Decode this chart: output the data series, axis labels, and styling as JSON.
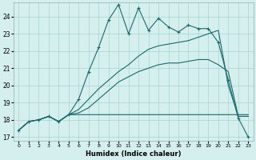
{
  "xlabel": "Humidex (Indice chaleur)",
  "bg_color": "#d5eeee",
  "line_color": "#1a6b6b",
  "xlim": [
    -0.5,
    23.5
  ],
  "ylim": [
    16.8,
    24.8
  ],
  "yticks": [
    17,
    18,
    19,
    20,
    21,
    22,
    23,
    24
  ],
  "xticks": [
    0,
    1,
    2,
    3,
    4,
    5,
    6,
    7,
    8,
    9,
    10,
    11,
    12,
    13,
    14,
    15,
    16,
    17,
    18,
    19,
    20,
    21,
    22,
    23
  ],
  "s1_x": [
    0,
    1,
    2,
    3,
    4,
    5,
    6,
    7,
    8,
    9,
    10,
    11,
    12,
    13,
    14,
    15,
    16,
    17,
    18,
    19,
    20,
    21,
    22,
    23
  ],
  "s1_y": [
    17.4,
    17.9,
    18.0,
    18.2,
    17.9,
    18.3,
    19.2,
    20.8,
    22.2,
    23.8,
    24.7,
    23.0,
    24.5,
    23.2,
    23.9,
    23.4,
    23.1,
    23.5,
    23.3,
    23.3,
    22.5,
    20.3,
    18.1,
    17.0
  ],
  "s2_x": [
    0,
    1,
    2,
    3,
    4,
    5,
    6,
    7,
    8,
    9,
    10,
    11,
    12,
    13,
    14,
    15,
    16,
    17,
    18,
    19,
    20,
    21,
    22,
    23
  ],
  "s2_y": [
    17.4,
    17.9,
    18.0,
    18.2,
    17.9,
    18.3,
    18.3,
    18.3,
    18.3,
    18.3,
    18.3,
    18.3,
    18.3,
    18.3,
    18.3,
    18.3,
    18.3,
    18.3,
    18.3,
    18.3,
    18.3,
    18.3,
    18.3,
    18.3
  ],
  "s3_x": [
    0,
    1,
    2,
    3,
    4,
    5,
    6,
    7,
    8,
    9,
    10,
    11,
    12,
    13,
    14,
    15,
    16,
    17,
    18,
    19,
    20,
    21,
    22,
    23
  ],
  "s3_y": [
    17.4,
    17.9,
    18.0,
    18.2,
    17.9,
    18.3,
    18.6,
    19.2,
    19.8,
    20.3,
    20.8,
    21.2,
    21.7,
    22.1,
    22.3,
    22.4,
    22.5,
    22.6,
    22.8,
    23.0,
    23.2,
    20.0,
    18.2,
    18.2
  ],
  "s4_x": [
    0,
    1,
    2,
    3,
    4,
    5,
    6,
    7,
    8,
    9,
    10,
    11,
    12,
    13,
    14,
    15,
    16,
    17,
    18,
    19,
    20,
    21,
    22,
    23
  ],
  "s4_y": [
    17.4,
    17.9,
    18.0,
    18.2,
    17.9,
    18.3,
    18.4,
    18.7,
    19.2,
    19.7,
    20.2,
    20.5,
    20.8,
    21.0,
    21.2,
    21.3,
    21.3,
    21.4,
    21.5,
    21.5,
    21.2,
    20.8,
    18.2,
    18.2
  ]
}
